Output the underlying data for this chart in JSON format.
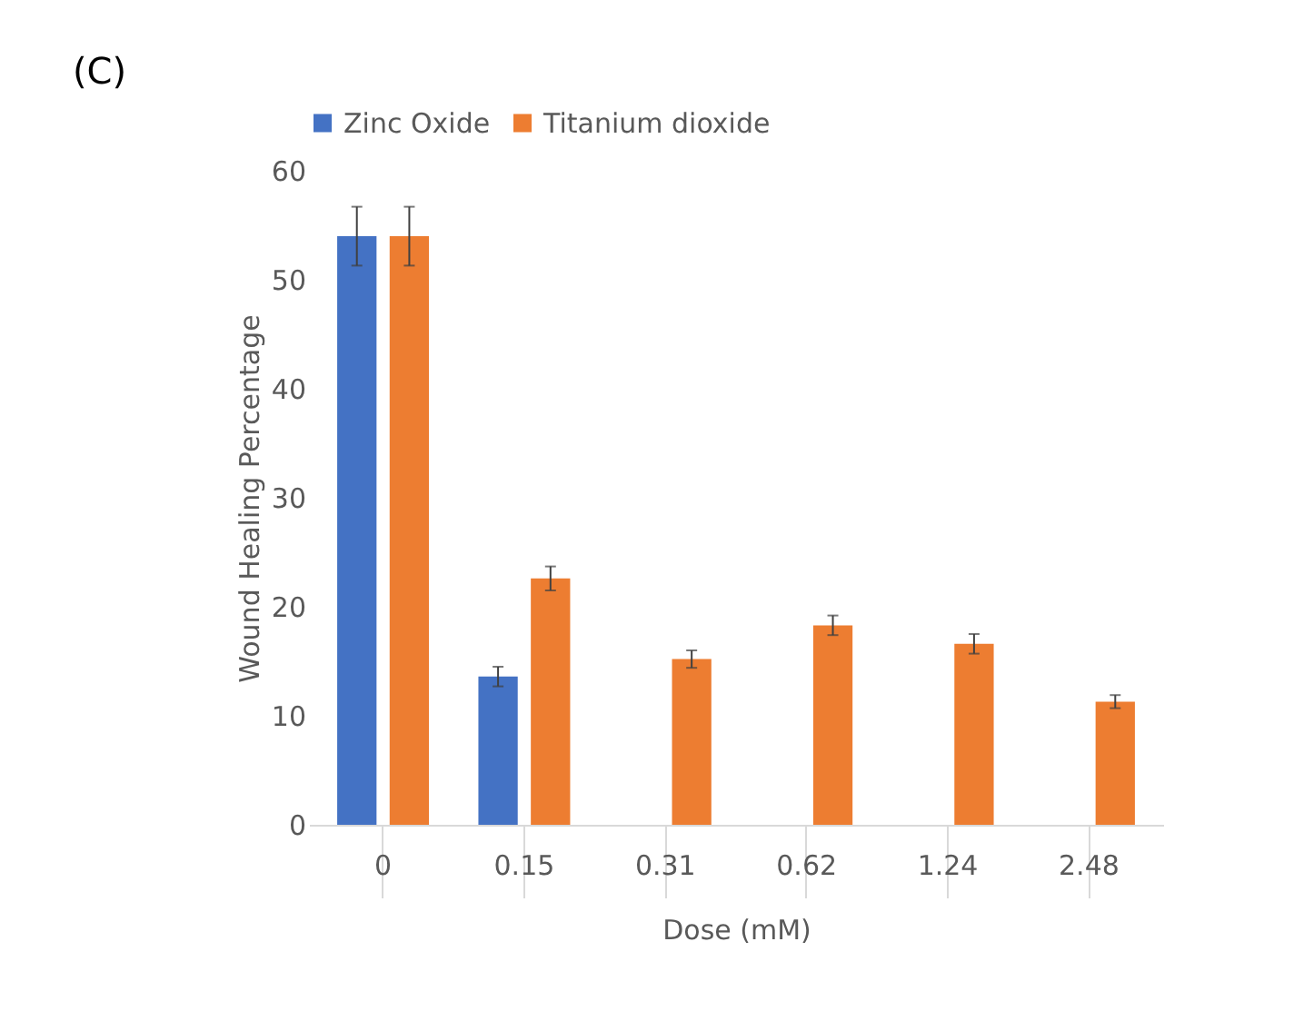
{
  "chart_data": {
    "type": "bar",
    "title": "(C)",
    "xlabel": "Dose (mM)",
    "ylabel": "Wound Healing Percentage",
    "categories": [
      "0",
      "0.15",
      "0.31",
      "0.62",
      "1.24",
      "2.48"
    ],
    "series": [
      {
        "name": "Zinc Oxide",
        "color": "#4472c4",
        "values": [
          54,
          13.6,
          null,
          null,
          null,
          null
        ],
        "errors": [
          2.7,
          0.9,
          null,
          null,
          null,
          null
        ]
      },
      {
        "name": "Titanium dioxide",
        "color": "#ed7d31",
        "values": [
          54,
          22.6,
          15.2,
          18.3,
          16.6,
          11.3
        ],
        "errors": [
          2.7,
          1.1,
          0.8,
          0.9,
          0.9,
          0.6
        ]
      }
    ],
    "ylim": [
      0,
      60
    ],
    "yticks": [
      0,
      10,
      20,
      30,
      40,
      50,
      60
    ],
    "grid": false,
    "legend": "top"
  }
}
